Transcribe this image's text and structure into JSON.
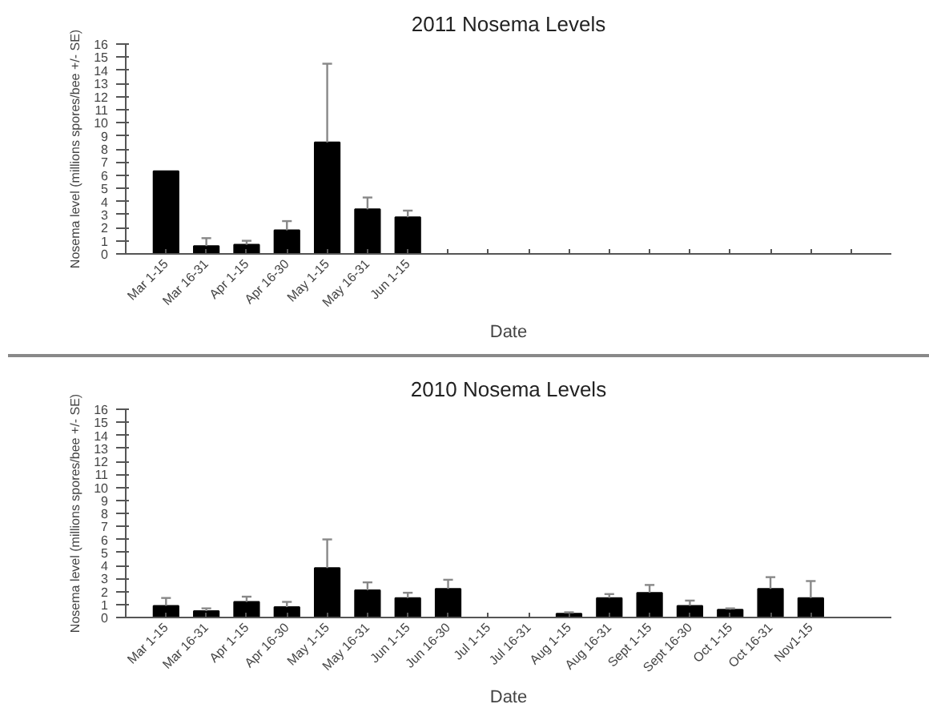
{
  "chart_data": [
    {
      "type": "bar",
      "title": "2011 Nosema Levels",
      "xlabel": "Date",
      "ylabel": "Nosema level (millions spores/bee +/- SE)",
      "categories": [
        "Mar 1-15",
        "Mar 16-31",
        "Apr 1-15",
        "Apr 16-30",
        "May 1-15",
        "May 16-31",
        "Jun 1-15",
        null,
        null,
        null,
        null,
        null,
        null,
        null,
        null,
        null,
        null,
        null
      ],
      "values": [
        6.3,
        0.6,
        0.7,
        1.8,
        8.5,
        3.4,
        2.8,
        null,
        null,
        null,
        null,
        null,
        null,
        null,
        null,
        null,
        null,
        null
      ],
      "errors": [
        null,
        [
          0.6,
          1.2
        ],
        [
          0.7,
          1.0
        ],
        [
          1.8,
          2.5
        ],
        [
          8.5,
          14.5
        ],
        [
          3.4,
          4.3
        ],
        [
          2.8,
          3.3
        ],
        null,
        null,
        null,
        null,
        null,
        null,
        null,
        null,
        null,
        null,
        null
      ],
      "color": "#000000",
      "ylim": [
        0,
        16
      ],
      "yticks": [
        0,
        1,
        2,
        3,
        4,
        5,
        6,
        7,
        8,
        9,
        10,
        11,
        12,
        13,
        14,
        15,
        16
      ],
      "grid": false
    },
    {
      "type": "bar",
      "title": "2010 Nosema Levels",
      "xlabel": "Date",
      "ylabel": "Nosema level (millions spores/bee +/- SE)",
      "categories": [
        "Mar 1-15",
        "Mar 16-31",
        "Apr 1-15",
        "Apr 16-30",
        "May 1-15",
        "May 16-31",
        "Jun 1-15",
        "Jun 16-30",
        "Jul 1-15",
        "Jul 16-31",
        "Aug 1-15",
        "Aug 16-31",
        "Sept 1-15",
        "Sept 16-30",
        "Oct 1-15",
        "Oct 16-31",
        "Nov1-15"
      ],
      "values": [
        0.9,
        0.5,
        1.2,
        0.8,
        3.8,
        2.1,
        1.5,
        2.2,
        null,
        null,
        0.3,
        1.5,
        1.9,
        0.9,
        0.6,
        2.2,
        1.5
      ],
      "errors": [
        [
          0.9,
          1.5
        ],
        [
          0.5,
          0.7
        ],
        [
          1.2,
          1.6
        ],
        [
          0.8,
          1.2
        ],
        [
          3.8,
          6.0
        ],
        [
          2.1,
          2.7
        ],
        [
          1.5,
          1.9
        ],
        [
          2.2,
          2.9
        ],
        null,
        null,
        [
          0.3,
          0.4
        ],
        [
          1.5,
          1.8
        ],
        [
          1.9,
          2.5
        ],
        [
          0.9,
          1.3
        ],
        [
          0.6,
          0.7
        ],
        [
          2.2,
          3.1
        ],
        [
          1.5,
          2.8
        ]
      ],
      "color": "#000000",
      "ylim": [
        0,
        16
      ],
      "yticks": [
        0,
        1,
        2,
        3,
        4,
        5,
        6,
        7,
        8,
        9,
        10,
        11,
        12,
        13,
        14,
        15,
        16
      ],
      "grid": false
    }
  ]
}
